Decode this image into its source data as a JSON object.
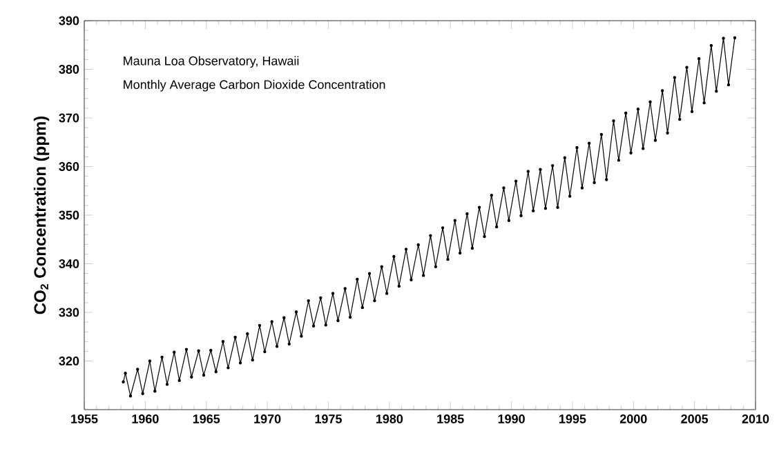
{
  "chart_data": {
    "type": "line",
    "ylabel": "CO$_{2}$ Concentration (ppm)",
    "annotations": [
      "Mauna Loa Observatory, Hawaii",
      "Monthly Average Carbon Dioxide Concentration"
    ],
    "xlim": [
      1955,
      2010
    ],
    "xticks": [
      1955,
      1960,
      1965,
      1970,
      1975,
      1980,
      1985,
      1990,
      1995,
      2000,
      2005,
      2010
    ],
    "ylim": [
      310,
      390
    ],
    "yticks": [
      320,
      330,
      340,
      350,
      360,
      370,
      380,
      390
    ],
    "marker": "circle",
    "line_style": "solid",
    "series": [
      {
        "color": "#000000",
        "x": [
          1958.2,
          1958.37,
          1958.79,
          1959.37,
          1959.79,
          1960.37,
          1960.79,
          1961.37,
          1961.79,
          1962.37,
          1962.79,
          1963.37,
          1963.79,
          1964.37,
          1964.79,
          1965.37,
          1965.79,
          1966.37,
          1966.79,
          1967.37,
          1967.79,
          1968.37,
          1968.79,
          1969.37,
          1969.79,
          1970.37,
          1970.79,
          1971.37,
          1971.79,
          1972.37,
          1972.79,
          1973.37,
          1973.79,
          1974.37,
          1974.79,
          1975.37,
          1975.79,
          1976.37,
          1976.79,
          1977.37,
          1977.79,
          1978.37,
          1978.79,
          1979.37,
          1979.79,
          1980.37,
          1980.79,
          1981.37,
          1981.79,
          1982.37,
          1982.79,
          1983.37,
          1983.79,
          1984.37,
          1984.79,
          1985.37,
          1985.79,
          1986.37,
          1986.79,
          1987.37,
          1987.79,
          1988.37,
          1988.79,
          1989.37,
          1989.79,
          1990.37,
          1990.79,
          1991.37,
          1991.79,
          1992.37,
          1992.79,
          1993.37,
          1993.79,
          1994.37,
          1994.79,
          1995.37,
          1995.79,
          1996.37,
          1996.79,
          1997.37,
          1997.79,
          1998.37,
          1998.79,
          1999.37,
          1999.79,
          2000.37,
          2000.79,
          2001.37,
          2001.79,
          2002.37,
          2002.79,
          2003.37,
          2003.79,
          2004.37,
          2004.79,
          2005.37,
          2005.79,
          2006.37,
          2006.79,
          2007.37,
          2007.79,
          2008.3
        ],
        "values": [
          315.7,
          317.5,
          312.8,
          318.3,
          313.3,
          320.0,
          313.8,
          320.8,
          315.2,
          321.8,
          316.0,
          322.4,
          316.7,
          322.1,
          317.1,
          322.2,
          317.8,
          324.0,
          318.6,
          324.9,
          319.6,
          325.6,
          320.2,
          327.3,
          321.9,
          328.1,
          323.0,
          328.9,
          323.5,
          330.1,
          325.1,
          332.4,
          327.2,
          333.0,
          327.4,
          333.9,
          328.3,
          334.9,
          329.0,
          336.8,
          331.0,
          338.0,
          332.4,
          339.4,
          333.9,
          341.5,
          335.4,
          343.0,
          336.7,
          343.9,
          337.6,
          345.8,
          339.4,
          347.4,
          340.9,
          348.9,
          342.2,
          350.3,
          343.2,
          351.6,
          345.6,
          354.1,
          347.6,
          355.6,
          348.9,
          357.0,
          349.9,
          359.0,
          350.9,
          359.4,
          351.4,
          360.2,
          351.6,
          361.8,
          353.9,
          363.9,
          355.6,
          364.8,
          356.7,
          366.6,
          357.3,
          369.4,
          361.3,
          371.0,
          362.8,
          371.8,
          363.7,
          373.3,
          365.4,
          375.6,
          366.9,
          378.3,
          369.7,
          380.4,
          371.3,
          382.2,
          373.1,
          384.9,
          375.5,
          386.4,
          376.8,
          386.5
        ]
      }
    ]
  }
}
